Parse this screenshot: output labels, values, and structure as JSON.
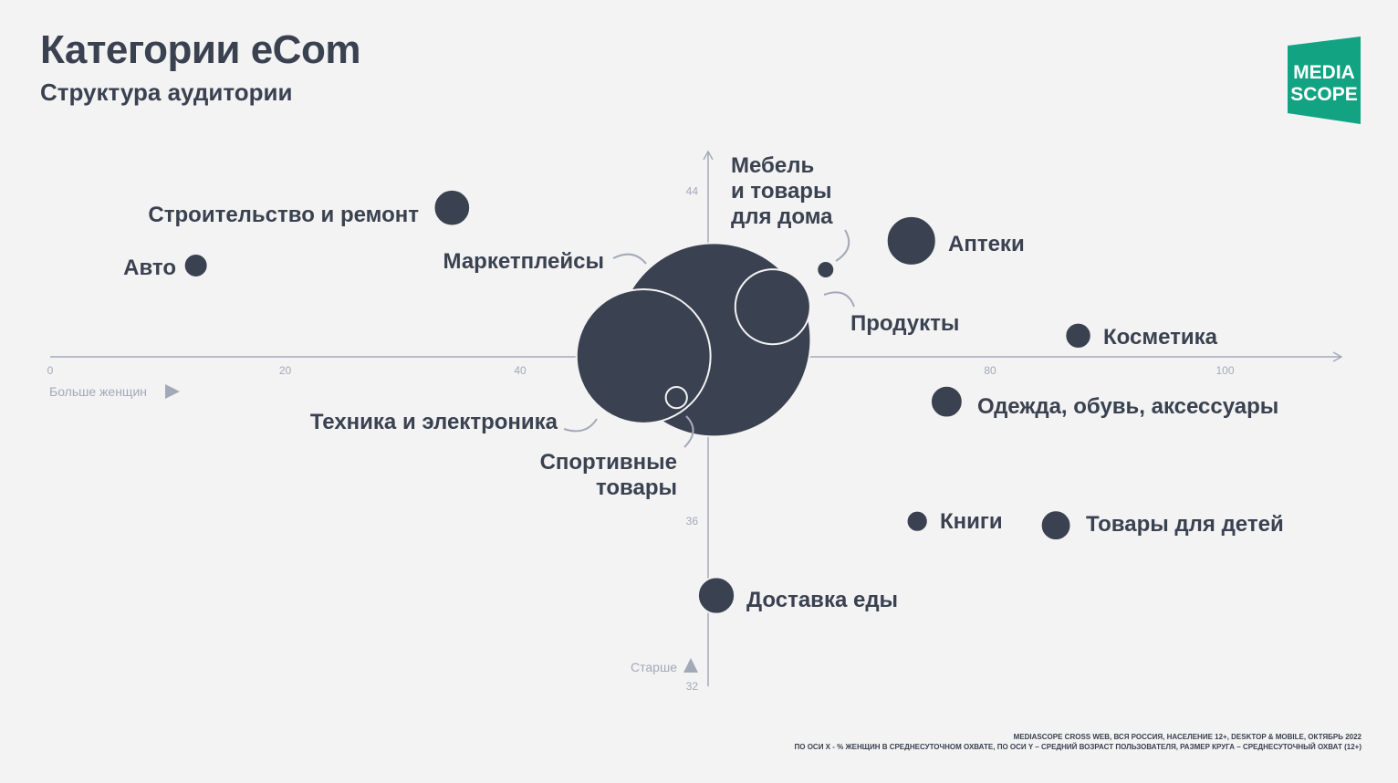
{
  "header": {
    "title": "Категории eCom",
    "subtitle": "Структура аудитории"
  },
  "logo": {
    "line1": "MEDIA",
    "line2": "SCOPE",
    "color": "#12a383"
  },
  "axis_hints": {
    "x_hint": "Больше женщин",
    "y_hint": "Старше"
  },
  "footnote": {
    "line1": "MEDIASCOPE CROSS WEB, ВСЯ РОССИЯ, НАСЕЛЕНИЕ 12+, DESKTOP & MOBILE, ОКТЯБРЬ 2022",
    "line2": "ПО ОСИ X - % ЖЕНЩИН В СРЕДНЕСУТОЧНОМ ОХВАТЕ, ПО ОСИ Y – СРЕДНИЙ ВОЗРАСТ ПОЛЬЗОВАТЕЛЯ, РАЗМЕР КРУГА – СРЕДНЕСУТОЧНЫЙ ОХВАТ (12+)"
  },
  "colors": {
    "bubble": "#3a4150",
    "axis": "#a3a9b8",
    "background": "#f3f3f3"
  },
  "chart_data": {
    "type": "scatter",
    "xlabel": "",
    "ylabel": "",
    "xlim": [
      0,
      110
    ],
    "ylim": [
      32,
      45
    ],
    "x_ticks": [
      0,
      20,
      40,
      60,
      80,
      100
    ],
    "y_ticks": [
      32,
      36,
      40,
      44
    ],
    "x_tick_labels": [
      "0",
      "20",
      "40",
      "",
      "80",
      "100"
    ],
    "y_tick_labels": [
      "32",
      "36",
      "",
      "44"
    ],
    "points": [
      {
        "label": "Строительство и ремонт",
        "x": 34.2,
        "y": 43.6,
        "size": 3.5
      },
      {
        "label": "Авто",
        "x": 12.4,
        "y": 42.2,
        "size": 1.5
      },
      {
        "label": "Маркетплейсы",
        "x": 56.5,
        "y": 40.4,
        "size": 100
      },
      {
        "label": "Техника и электроника",
        "x": 50.5,
        "y": 40.0,
        "size": 48
      },
      {
        "label": "Спортивные товары",
        "x": 53.3,
        "y": 39.0,
        "size": 1.2
      },
      {
        "label": "Мебель и товары для дома",
        "x": 66.0,
        "y": 42.1,
        "size": 0.8
      },
      {
        "label": "Продукты",
        "x": 61.5,
        "y": 41.2,
        "size": 15
      },
      {
        "label": "Аптеки",
        "x": 73.3,
        "y": 42.8,
        "size": 6.5
      },
      {
        "label": "Косметика",
        "x": 87.5,
        "y": 40.5,
        "size": 1.8
      },
      {
        "label": "Одежда, обувь, аксессуары",
        "x": 76.3,
        "y": 38.9,
        "size": 2.7
      },
      {
        "label": "Книги",
        "x": 73.8,
        "y": 36.0,
        "size": 1.2
      },
      {
        "label": "Товары для детей",
        "x": 85.6,
        "y": 35.9,
        "size": 2.4
      },
      {
        "label": "Доставка еды",
        "x": 56.7,
        "y": 34.2,
        "size": 3.6
      }
    ]
  }
}
